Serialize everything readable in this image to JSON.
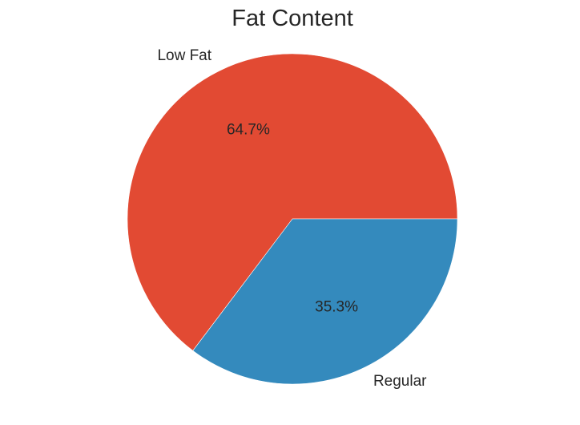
{
  "chart_data": {
    "type": "pie",
    "title": "Fat Content",
    "categories": [
      "Low Fat",
      "Regular"
    ],
    "values": [
      64.7,
      35.3
    ],
    "percent_labels": [
      "64.7%",
      "35.3%"
    ],
    "colors": [
      "#E24A33",
      "#348ABD"
    ],
    "start_angle": 0,
    "direction": "counterclockwise",
    "legend": "none"
  }
}
